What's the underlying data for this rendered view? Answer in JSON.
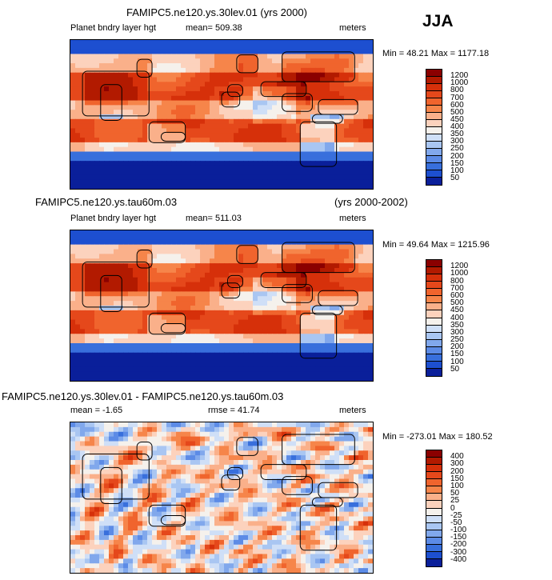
{
  "season": "JJA",
  "panels": [
    {
      "title": "FAMIPC5.ne120.ys.30lev.01 (yrs 2000)",
      "title_right": "",
      "left_label": "Planet bndry layer hgt",
      "mid_label": "mean= 509.38",
      "units": "meters",
      "minmax": "Min =  48.21  Max = 1177.18",
      "colorbar_labels": [
        "1200",
        "1000",
        "800",
        "700",
        "600",
        "500",
        "450",
        "400",
        "350",
        "300",
        "250",
        "200",
        "150",
        "100",
        "50"
      ],
      "colorbar_colors": [
        "#8b0000",
        "#b21a00",
        "#d6300a",
        "#e5481b",
        "#f0642d",
        "#f6854a",
        "#fab08a",
        "#fcd2bd",
        "#f5f1ec",
        "#cfdff7",
        "#a9c6f2",
        "#81a8ec",
        "#5c8be6",
        "#386fdc",
        "#1d4fd0",
        "#0a1f9a"
      ],
      "map_type": "abs"
    },
    {
      "title": "FAMIPC5.ne120.ys.tau60m.03",
      "title_right": "(yrs 2000-2002)",
      "left_label": "Planet bndry layer hgt",
      "mid_label": "mean= 511.03",
      "units": "meters",
      "minmax": "Min =  49.64  Max = 1215.96",
      "colorbar_labels": [
        "1200",
        "1000",
        "800",
        "700",
        "600",
        "500",
        "450",
        "400",
        "350",
        "300",
        "250",
        "200",
        "150",
        "100",
        "50"
      ],
      "colorbar_colors": [
        "#8b0000",
        "#b21a00",
        "#d6300a",
        "#e5481b",
        "#f0642d",
        "#f6854a",
        "#fab08a",
        "#fcd2bd",
        "#f5f1ec",
        "#cfdff7",
        "#a9c6f2",
        "#81a8ec",
        "#5c8be6",
        "#386fdc",
        "#1d4fd0",
        "#0a1f9a"
      ],
      "map_type": "abs"
    },
    {
      "title": "FAMIPC5.ne120.ys.30lev.01 - FAMIPC5.ne120.ys.tau60m.03",
      "title_right": "",
      "left_label": "mean =  -1.65",
      "mid_label": "rmse =  41.74",
      "units": "meters",
      "minmax": "Min = -273.01  Max = 180.52",
      "colorbar_labels": [
        "400",
        "300",
        "200",
        "150",
        "100",
        "50",
        "25",
        "0",
        "-25",
        "-50",
        "-100",
        "-150",
        "-200",
        "-300",
        "-400"
      ],
      "colorbar_colors": [
        "#8b0000",
        "#b21a00",
        "#d6300a",
        "#e5481b",
        "#f0642d",
        "#f6854a",
        "#fab08a",
        "#fcd2bd",
        "#f5f1ec",
        "#cfdff7",
        "#a9c6f2",
        "#81a8ec",
        "#5c8be6",
        "#386fdc",
        "#1d4fd0",
        "#0a1f9a"
      ],
      "map_type": "diff"
    }
  ]
}
